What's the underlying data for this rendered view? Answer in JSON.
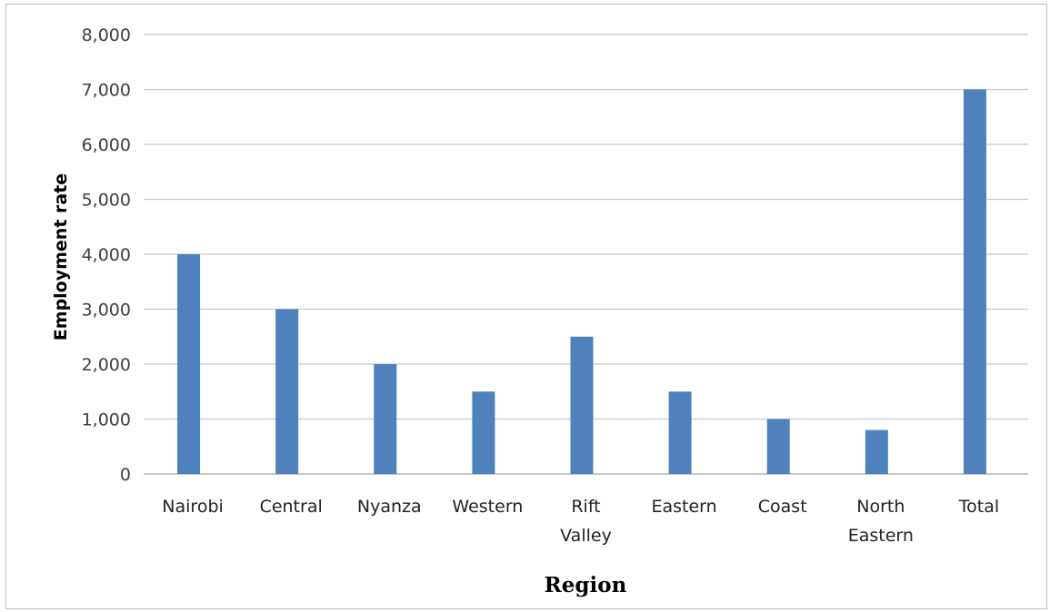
{
  "chart_data": {
    "type": "bar",
    "title": "",
    "xlabel": "Region",
    "ylabel": "Employment rate",
    "ylim": [
      0,
      8000
    ],
    "yticks": [
      "0",
      "1,000",
      "2,000",
      "3,000",
      "4,000",
      "5,000",
      "6,000",
      "7,000",
      "8,000"
    ],
    "ytick_values": [
      0,
      1000,
      2000,
      3000,
      4000,
      5000,
      6000,
      7000,
      8000
    ],
    "grid": true,
    "categories": [
      "Nairobi",
      "Central",
      "Nyanza",
      "Western",
      "Rift Valley",
      "Eastern",
      "Coast",
      "North Eastern",
      "Total"
    ],
    "category_lines": [
      [
        "Nairobi"
      ],
      [
        "Central"
      ],
      [
        "Nyanza"
      ],
      [
        "Western"
      ],
      [
        "Rift",
        "Valley"
      ],
      [
        "Eastern"
      ],
      [
        "Coast"
      ],
      [
        "North",
        "Eastern"
      ],
      [
        "Total"
      ]
    ],
    "values": [
      4000,
      3000,
      2000,
      1500,
      2500,
      1500,
      1000,
      800,
      7000
    ],
    "bar_color": "#4f81bd"
  }
}
